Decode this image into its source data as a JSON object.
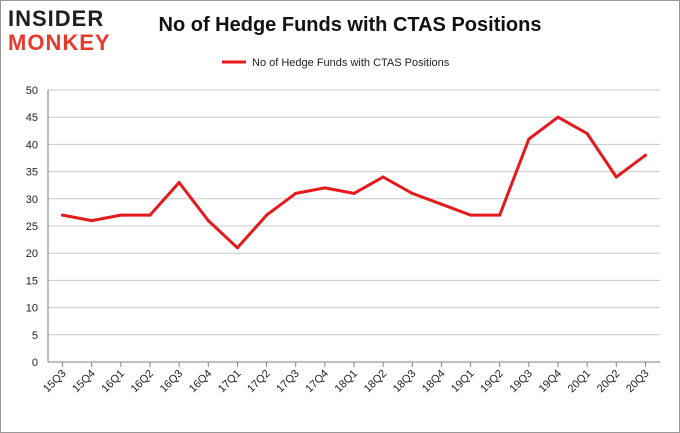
{
  "logo": {
    "line1": "INSIDER",
    "line2": "MONKEY"
  },
  "chart_data": {
    "type": "line",
    "title": "No of Hedge Funds with CTAS Positions",
    "xlabel": "",
    "ylabel": "",
    "categories": [
      "15Q3",
      "15Q4",
      "16Q1",
      "16Q2",
      "16Q3",
      "16Q4",
      "17Q1",
      "17Q2",
      "17Q3",
      "17Q4",
      "18Q1",
      "18Q2",
      "18Q3",
      "18Q4",
      "19Q1",
      "19Q2",
      "19Q3",
      "19Q4",
      "20Q1",
      "20Q2",
      "20Q3"
    ],
    "series": [
      {
        "name": "No of Hedge Funds with CTAS Positions",
        "values": [
          27,
          26,
          27,
          27,
          33,
          26,
          21,
          27,
          31,
          32,
          31,
          34,
          31,
          29,
          27,
          27,
          41,
          45,
          42,
          34,
          38
        ]
      }
    ],
    "ylim": [
      0,
      50
    ],
    "yticks": [
      0,
      5,
      10,
      15,
      20,
      25,
      30,
      35,
      40,
      45,
      50
    ],
    "grid": true,
    "legend_position": "top",
    "colors": {
      "series": "#e41a1c",
      "grid": "#c8c8c8",
      "axis": "#808080",
      "text": "#222222"
    }
  }
}
